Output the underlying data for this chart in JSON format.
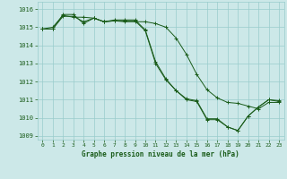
{
  "title": "Graphe pression niveau de la mer (hPa)",
  "background_color": "#cce8e8",
  "grid_color": "#99cccc",
  "line_color": "#1a5c1a",
  "xlim": [
    -0.5,
    23.5
  ],
  "ylim": [
    1008.8,
    1016.4
  ],
  "yticks": [
    1009,
    1010,
    1011,
    1012,
    1013,
    1014,
    1015,
    1016
  ],
  "xticks": [
    0,
    1,
    2,
    3,
    4,
    5,
    6,
    7,
    8,
    9,
    10,
    11,
    12,
    13,
    14,
    15,
    16,
    17,
    18,
    19,
    20,
    21,
    22,
    23
  ],
  "series1_x": [
    0,
    1,
    2,
    3,
    4,
    5,
    6,
    7,
    8,
    9,
    10,
    11,
    12,
    13,
    14,
    15,
    16,
    17,
    18,
    19,
    20,
    21,
    22,
    23
  ],
  "series1_y": [
    1014.9,
    1014.9,
    1015.6,
    1015.6,
    1015.3,
    1015.5,
    1015.3,
    1015.35,
    1015.35,
    1015.35,
    1014.8,
    1013.0,
    1012.1,
    1011.5,
    1011.0,
    1010.9,
    1009.9,
    1009.9,
    1009.5,
    1009.3,
    1010.1,
    1010.6,
    1011.0,
    1010.9
  ],
  "series2_x": [
    0,
    1,
    2,
    3,
    4,
    5,
    6,
    7,
    8,
    9,
    10,
    11,
    12,
    13,
    14,
    15,
    16,
    17,
    18,
    19,
    20,
    21,
    22,
    23
  ],
  "series2_y": [
    1014.9,
    1015.0,
    1015.65,
    1015.55,
    1015.55,
    1015.5,
    1015.3,
    1015.35,
    1015.3,
    1015.3,
    1015.3,
    1015.2,
    1015.0,
    1014.4,
    1013.5,
    1012.4,
    1011.55,
    1011.1,
    1010.85,
    1010.8,
    1010.65,
    1010.5,
    1010.85,
    1010.85
  ],
  "series3_x": [
    0,
    1,
    2,
    3,
    4,
    5,
    6,
    7,
    8,
    9,
    10,
    11,
    12,
    13,
    14,
    15,
    16,
    17,
    18,
    19,
    20,
    21,
    22,
    23
  ],
  "series3_y": [
    1014.9,
    1014.9,
    1015.7,
    1015.7,
    1015.2,
    1015.5,
    1015.3,
    1015.4,
    1015.4,
    1015.4,
    1014.85,
    1013.1,
    1012.15,
    1011.5,
    1011.05,
    1010.95,
    1009.95,
    1009.95,
    1009.5,
    1009.3,
    1010.1,
    1010.6,
    1011.0,
    1010.95
  ]
}
